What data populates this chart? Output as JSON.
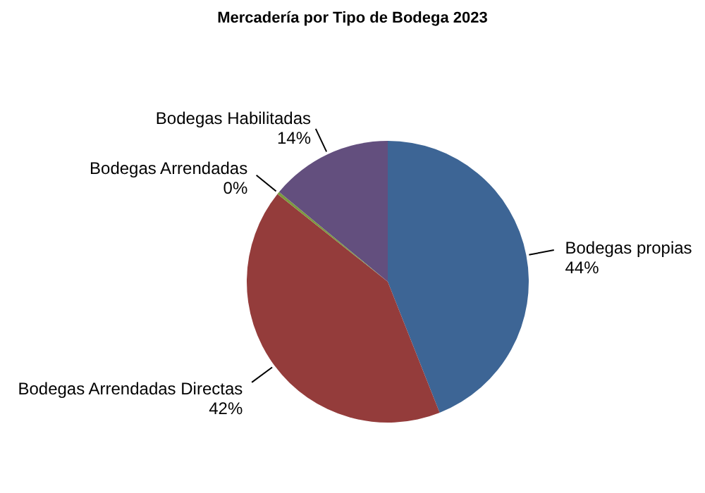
{
  "chart_data": {
    "type": "pie",
    "title": "Mercadería por Tipo de Bodega 2023",
    "categories": [
      "Bodegas propias",
      "Bodegas Arrendadas Directas",
      "Bodegas Arrendadas",
      "Bodegas Habilitadas"
    ],
    "values": [
      44,
      41.7,
      0.3,
      14
    ],
    "value_labels": [
      "44%",
      "42%",
      "0%",
      "14%"
    ],
    "colors": [
      "#3d6595",
      "#943c3b",
      "#7c9a3f",
      "#634f7e"
    ]
  }
}
